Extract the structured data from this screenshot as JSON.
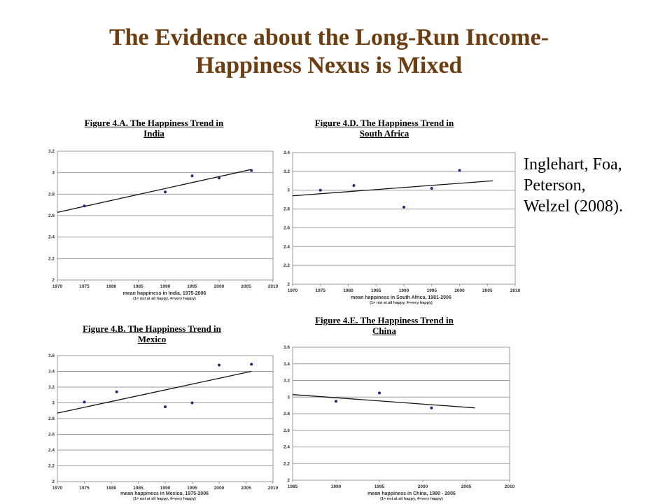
{
  "slide": {
    "title_line1": "The Evidence about the Long-Run Income-",
    "title_line2": "Happiness Nexus is Mixed",
    "citation_lines": [
      "Inglehart, Foa,",
      "Peterson,",
      "Welzel (2008)."
    ],
    "title_color": "#6b3d10"
  },
  "chart_data": [
    {
      "type": "scatter",
      "title_line1": "Figure 4.A.  The Happiness Trend in",
      "title_line2": "India",
      "xlabel": "mean happiness in India, 1975-2006",
      "xlabel_note": "(1= not at all happy,  4=very happy)",
      "x_ticks": [
        1970,
        1975,
        1980,
        1985,
        1990,
        1995,
        2000,
        2005,
        2010
      ],
      "y_ticks": [
        "2",
        "2.2",
        "2.4",
        "2.6",
        "2.8",
        "3",
        "3.2"
      ],
      "xlim": [
        1970,
        2010
      ],
      "ylim": [
        2,
        3.2
      ],
      "points": [
        [
          1975,
          2.69
        ],
        [
          1990,
          2.82
        ],
        [
          1995,
          2.97
        ],
        [
          2000,
          2.95
        ],
        [
          2006,
          3.02
        ]
      ],
      "trend": [
        [
          1970,
          2.63
        ],
        [
          2006,
          3.03
        ]
      ],
      "grid": true
    },
    {
      "type": "scatter",
      "title_line1": "Figure 4.D.  The Happiness Trend in",
      "title_line2": "South Africa",
      "xlabel": "mean happiness in South Africa, 1981-2006",
      "xlabel_note": "(1= not at all happy,  4=very happy)",
      "x_ticks": [
        1970,
        1975,
        1980,
        1985,
        1990,
        1995,
        2000,
        2005,
        2010
      ],
      "y_ticks": [
        "2",
        "2.2",
        "2.4",
        "2.6",
        "2.8",
        "3",
        "3.2",
        "3.4"
      ],
      "xlim": [
        1970,
        2010
      ],
      "ylim": [
        2,
        3.4
      ],
      "points": [
        [
          1975,
          3.0
        ],
        [
          1981,
          3.05
        ],
        [
          1990,
          2.82
        ],
        [
          1995,
          3.02
        ],
        [
          2000,
          3.21
        ]
      ],
      "trend": [
        [
          1970,
          2.94
        ],
        [
          2006,
          3.1
        ]
      ],
      "grid": true
    },
    {
      "type": "scatter",
      "title_line1": "Figure 4.B.  The Happiness Trend in",
      "title_line2": "Mexico",
      "xlabel": "mean happiness in Mexico, 1975-2006",
      "xlabel_note": "(1= not at all happy,  4=very happy)",
      "x_ticks": [
        1970,
        1975,
        1980,
        1985,
        1990,
        1995,
        2000,
        2005,
        2010
      ],
      "y_ticks": [
        "2",
        "2.2",
        "2.4",
        "2.6",
        "2.8",
        "3",
        "3.2",
        "3.4",
        "3.6"
      ],
      "xlim": [
        1970,
        2010
      ],
      "ylim": [
        2,
        3.6
      ],
      "points": [
        [
          1975,
          3.01
        ],
        [
          1981,
          3.14
        ],
        [
          1990,
          2.95
        ],
        [
          1995,
          3.0
        ],
        [
          2000,
          3.48
        ],
        [
          2006,
          3.49
        ]
      ],
      "trend": [
        [
          1970,
          2.87
        ],
        [
          2006,
          3.4
        ]
      ],
      "grid": true
    },
    {
      "type": "scatter",
      "title_line1": "Figure 4.E.  The Happiness Trend in",
      "title_line2": "China",
      "xlabel": "mean happiness in China, 1990 - 2006",
      "xlabel_note": "(1= not at all happy,  4=very happy)",
      "x_ticks": [
        1985,
        1990,
        1995,
        2000,
        2005,
        2010
      ],
      "y_ticks": [
        "2",
        "2.2",
        "2.4",
        "2.6",
        "2.8",
        "3",
        "3.2",
        "3.4",
        "3.6"
      ],
      "xlim": [
        1985,
        2010
      ],
      "ylim": [
        2,
        3.6
      ],
      "points": [
        [
          1990,
          2.95
        ],
        [
          1995,
          3.05
        ],
        [
          2001,
          2.87
        ]
      ],
      "trend": [
        [
          1985,
          3.03
        ],
        [
          2006,
          2.87
        ]
      ],
      "grid": true
    }
  ]
}
